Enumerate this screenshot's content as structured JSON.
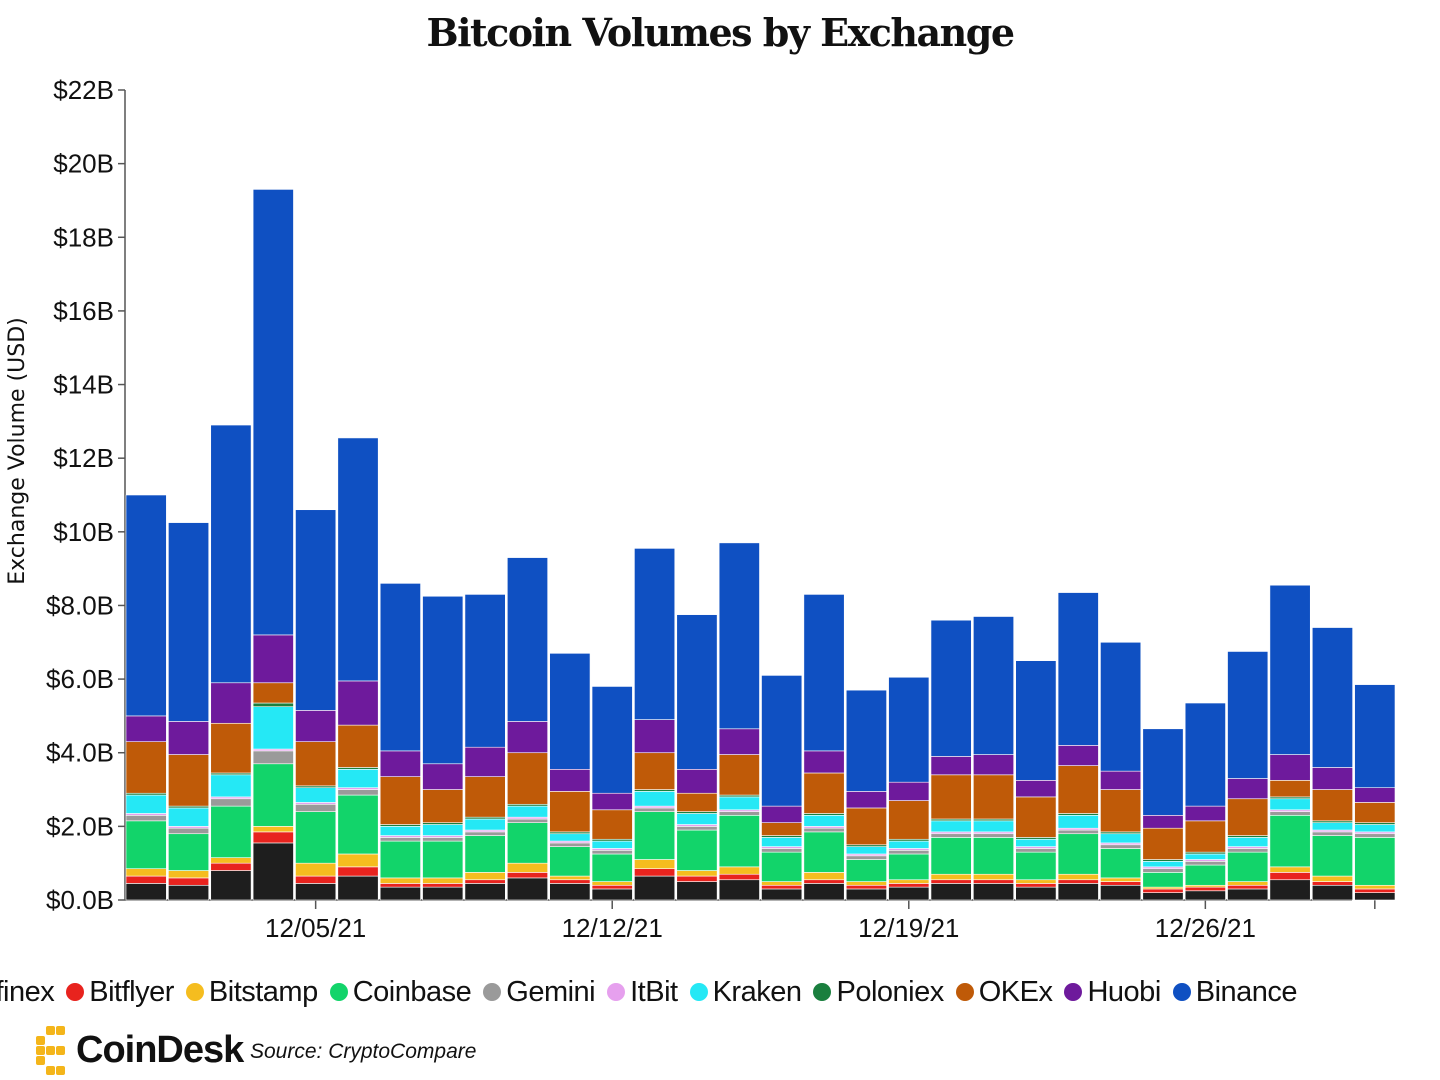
{
  "title": "Bitcoin Volumes by Exchange",
  "source": "Source: CryptoCompare",
  "logo": {
    "text": "CoinDesk"
  },
  "colors": {
    "Bitfinex": "#1e1e1e",
    "Bitflyer": "#e8231e",
    "Bitstamp": "#f5bd1f",
    "Coinbase": "#12d46a",
    "Gemini": "#9a9a9a",
    "ItBit": "#e6a0ee",
    "Kraken": "#25e8f5",
    "Poloniex": "#1a7f3e",
    "OKEx": "#bf5a08",
    "Huobi": "#6e1a9c",
    "Binance": "#0f50c2",
    "logo": "#f4b51a"
  },
  "legend": [
    {
      "label": "itfinex",
      "series": "Bitfinex"
    },
    {
      "label": "Bitflyer",
      "series": "Bitflyer"
    },
    {
      "label": "Bitstamp",
      "series": "Bitstamp"
    },
    {
      "label": "Coinbase",
      "series": "Coinbase"
    },
    {
      "label": "Gemini",
      "series": "Gemini"
    },
    {
      "label": "ItBit",
      "series": "ItBit"
    },
    {
      "label": "Kraken",
      "series": "Kraken"
    },
    {
      "label": "Poloniex",
      "series": "Poloniex"
    },
    {
      "label": "OKEx",
      "series": "OKEx"
    },
    {
      "label": "Huobi",
      "series": "Huobi"
    },
    {
      "label": "Binance",
      "series": "Binance"
    }
  ],
  "chart_data": {
    "type": "bar",
    "stacked": true,
    "title": "Bitcoin Volumes by Exchange",
    "ylabel": "Exchange Volume (USD)",
    "xlabel": "",
    "ylim": [
      0,
      22
    ],
    "y_unit": "$B",
    "y_ticks": [
      "$0.0B",
      "$2.0B",
      "$4.0B",
      "$6.0B",
      "$8.0B",
      "$10B",
      "$12B",
      "$14B",
      "$16B",
      "$18B",
      "$20B",
      "$22B"
    ],
    "x_ticks": [
      {
        "label": "12/05/21",
        "date": "2021-12-05"
      },
      {
        "label": "12/12/21",
        "date": "2021-12-12"
      },
      {
        "label": "12/19/21",
        "date": "2021-12-19"
      },
      {
        "label": "12/26/21",
        "date": "2021-12-26"
      }
    ],
    "dates": [
      "2021-12-01",
      "2021-12-02",
      "2021-12-03",
      "2021-12-04",
      "2021-12-05",
      "2021-12-06",
      "2021-12-07",
      "2021-12-08",
      "2021-12-09",
      "2021-12-10",
      "2021-12-11",
      "2021-12-12",
      "2021-12-13",
      "2021-12-14",
      "2021-12-15",
      "2021-12-16",
      "2021-12-17",
      "2021-12-18",
      "2021-12-19",
      "2021-12-20",
      "2021-12-21",
      "2021-12-22",
      "2021-12-23",
      "2021-12-24",
      "2021-12-25",
      "2021-12-26",
      "2021-12-27",
      "2021-12-28",
      "2021-12-29",
      "2021-12-30"
    ],
    "series": [
      {
        "name": "Bitfinex",
        "values": [
          0.45,
          0.4,
          0.8,
          1.55,
          0.45,
          0.65,
          0.35,
          0.35,
          0.45,
          0.6,
          0.45,
          0.3,
          0.65,
          0.5,
          0.55,
          0.3,
          0.45,
          0.3,
          0.35,
          0.45,
          0.45,
          0.35,
          0.45,
          0.4,
          0.2,
          0.25,
          0.3,
          0.55,
          0.4,
          0.2
        ]
      },
      {
        "name": "Bitflyer",
        "values": [
          0.2,
          0.2,
          0.2,
          0.3,
          0.2,
          0.25,
          0.1,
          0.1,
          0.1,
          0.15,
          0.1,
          0.1,
          0.2,
          0.15,
          0.15,
          0.1,
          0.1,
          0.1,
          0.1,
          0.1,
          0.1,
          0.1,
          0.1,
          0.1,
          0.1,
          0.1,
          0.1,
          0.2,
          0.1,
          0.1
        ]
      },
      {
        "name": "Bitstamp",
        "values": [
          0.2,
          0.2,
          0.15,
          0.15,
          0.35,
          0.35,
          0.15,
          0.15,
          0.2,
          0.25,
          0.1,
          0.1,
          0.25,
          0.15,
          0.2,
          0.1,
          0.2,
          0.1,
          0.1,
          0.15,
          0.15,
          0.1,
          0.15,
          0.1,
          0.05,
          0.05,
          0.1,
          0.15,
          0.15,
          0.1
        ]
      },
      {
        "name": "Coinbase",
        "values": [
          1.3,
          1.0,
          1.4,
          1.7,
          1.4,
          1.6,
          1.0,
          1.0,
          1.0,
          1.1,
          0.8,
          0.75,
          1.3,
          1.1,
          1.4,
          0.8,
          1.1,
          0.6,
          0.7,
          1.0,
          1.0,
          0.75,
          1.1,
          0.8,
          0.4,
          0.55,
          0.8,
          1.4,
          1.1,
          1.3
        ]
      },
      {
        "name": "Gemini",
        "values": [
          0.15,
          0.15,
          0.2,
          0.35,
          0.2,
          0.15,
          0.1,
          0.1,
          0.1,
          0.1,
          0.1,
          0.1,
          0.1,
          0.1,
          0.1,
          0.1,
          0.1,
          0.1,
          0.1,
          0.1,
          0.1,
          0.1,
          0.1,
          0.1,
          0.1,
          0.1,
          0.1,
          0.1,
          0.1,
          0.1
        ]
      },
      {
        "name": "ItBit",
        "values": [
          0.05,
          0.05,
          0.05,
          0.05,
          0.05,
          0.05,
          0.05,
          0.05,
          0.05,
          0.05,
          0.05,
          0.05,
          0.05,
          0.05,
          0.05,
          0.05,
          0.05,
          0.05,
          0.05,
          0.05,
          0.05,
          0.05,
          0.05,
          0.05,
          0.05,
          0.05,
          0.05,
          0.05,
          0.05,
          0.05
        ]
      },
      {
        "name": "Kraken",
        "values": [
          0.5,
          0.5,
          0.6,
          1.15,
          0.4,
          0.5,
          0.25,
          0.3,
          0.3,
          0.3,
          0.2,
          0.2,
          0.4,
          0.3,
          0.35,
          0.25,
          0.3,
          0.2,
          0.2,
          0.3,
          0.3,
          0.2,
          0.35,
          0.25,
          0.15,
          0.15,
          0.25,
          0.3,
          0.2,
          0.2
        ]
      },
      {
        "name": "Poloniex",
        "values": [
          0.05,
          0.05,
          0.05,
          0.1,
          0.05,
          0.05,
          0.05,
          0.05,
          0.05,
          0.05,
          0.05,
          0.05,
          0.05,
          0.05,
          0.05,
          0.05,
          0.05,
          0.05,
          0.05,
          0.05,
          0.05,
          0.05,
          0.05,
          0.05,
          0.05,
          0.05,
          0.05,
          0.05,
          0.05,
          0.05
        ]
      },
      {
        "name": "OKEx",
        "values": [
          1.4,
          1.4,
          1.35,
          0.55,
          1.2,
          1.15,
          1.3,
          0.9,
          1.1,
          1.4,
          1.1,
          0.8,
          1.0,
          0.5,
          1.1,
          0.35,
          1.1,
          1.0,
          1.05,
          1.2,
          1.2,
          1.1,
          1.3,
          1.15,
          0.85,
          0.85,
          1.0,
          0.45,
          0.85,
          0.55
        ]
      },
      {
        "name": "Huobi",
        "values": [
          0.7,
          0.9,
          1.1,
          1.3,
          0.85,
          1.2,
          0.7,
          0.7,
          0.8,
          0.85,
          0.6,
          0.45,
          0.9,
          0.65,
          0.7,
          0.45,
          0.6,
          0.45,
          0.5,
          0.5,
          0.55,
          0.45,
          0.55,
          0.5,
          0.35,
          0.4,
          0.55,
          0.7,
          0.6,
          0.4
        ]
      },
      {
        "name": "Binance",
        "values": [
          6.0,
          5.4,
          7.0,
          12.1,
          5.45,
          6.6,
          4.55,
          4.55,
          4.15,
          4.45,
          3.15,
          2.9,
          4.65,
          4.2,
          5.05,
          3.55,
          4.25,
          2.75,
          2.85,
          3.7,
          3.75,
          3.25,
          4.15,
          3.5,
          2.35,
          2.8,
          3.45,
          4.6,
          3.8,
          2.8
        ]
      }
    ]
  }
}
